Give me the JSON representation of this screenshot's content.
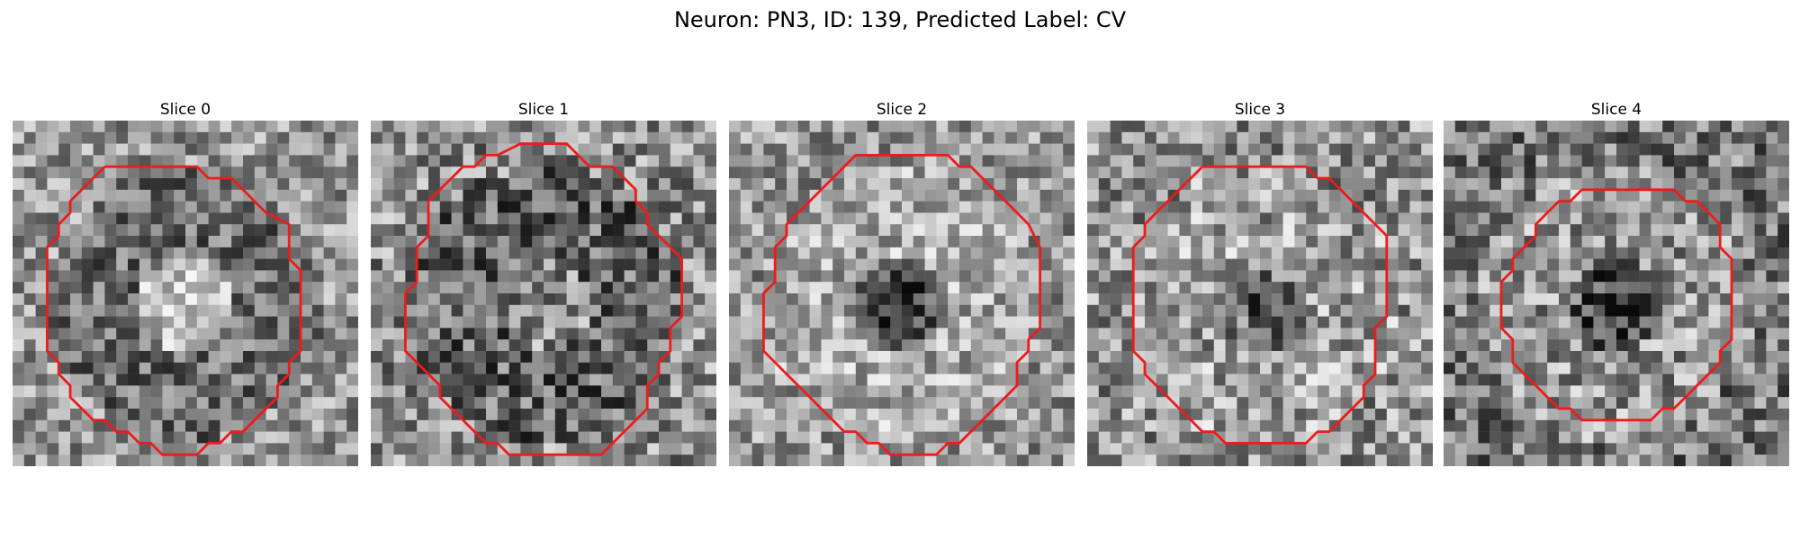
{
  "figure": {
    "title": "Neuron: PN3, ID: 139, Predicted Label: CV"
  },
  "colors": {
    "contour": "#ee1b1b",
    "background": "#ffffff"
  },
  "grid_size": 30,
  "panels": [
    {
      "title": "Slice 0",
      "contour": [
        [
          8,
          4
        ],
        [
          16,
          4
        ],
        [
          17,
          5
        ],
        [
          19,
          5
        ],
        [
          22,
          8
        ],
        [
          24,
          9
        ],
        [
          24,
          12
        ],
        [
          25,
          13
        ],
        [
          25,
          20
        ],
        [
          24,
          21
        ],
        [
          24,
          22
        ],
        [
          23,
          23
        ],
        [
          23,
          24
        ],
        [
          22,
          25
        ],
        [
          21,
          26
        ],
        [
          20,
          27
        ],
        [
          19,
          27
        ],
        [
          18,
          28
        ],
        [
          17,
          28
        ],
        [
          16,
          29
        ],
        [
          13,
          29
        ],
        [
          12,
          28
        ],
        [
          11,
          28
        ],
        [
          10,
          27
        ],
        [
          9,
          27
        ],
        [
          8,
          26
        ],
        [
          7,
          26
        ],
        [
          5,
          24
        ],
        [
          5,
          23
        ],
        [
          4,
          22
        ],
        [
          4,
          21
        ],
        [
          3,
          20
        ],
        [
          3,
          19
        ],
        [
          3,
          18
        ],
        [
          3,
          11
        ],
        [
          4,
          10
        ],
        [
          4,
          9
        ],
        [
          5,
          8
        ],
        [
          5,
          7
        ],
        [
          6,
          6
        ],
        [
          7,
          5
        ],
        [
          8,
          4
        ]
      ]
    },
    {
      "title": "Slice 1",
      "contour": [
        [
          11,
          3
        ],
        [
          13,
          2
        ],
        [
          17,
          2
        ],
        [
          19,
          4
        ],
        [
          21,
          4
        ],
        [
          22,
          5
        ],
        [
          23,
          6
        ],
        [
          23,
          7
        ],
        [
          24,
          8
        ],
        [
          24,
          9
        ],
        [
          25,
          10
        ],
        [
          26,
          11
        ],
        [
          27,
          12
        ],
        [
          27,
          17
        ],
        [
          26,
          18
        ],
        [
          26,
          20
        ],
        [
          25,
          21
        ],
        [
          25,
          22
        ],
        [
          24,
          23
        ],
        [
          24,
          25
        ],
        [
          22,
          27
        ],
        [
          21,
          28
        ],
        [
          20,
          29
        ],
        [
          12,
          29
        ],
        [
          11,
          28
        ],
        [
          10,
          28
        ],
        [
          9,
          27
        ],
        [
          8,
          26
        ],
        [
          7,
          25
        ],
        [
          6,
          24
        ],
        [
          6,
          23
        ],
        [
          5,
          22
        ],
        [
          4,
          21
        ],
        [
          3,
          20
        ],
        [
          3,
          19
        ],
        [
          3,
          15
        ],
        [
          4,
          14
        ],
        [
          4,
          11
        ],
        [
          5,
          10
        ],
        [
          5,
          7
        ],
        [
          6,
          6
        ],
        [
          7,
          5
        ],
        [
          8,
          4
        ],
        [
          9,
          4
        ],
        [
          10,
          3
        ],
        [
          11,
          3
        ]
      ]
    },
    {
      "title": "Slice 2",
      "contour": [
        [
          12,
          3
        ],
        [
          19,
          3
        ],
        [
          20,
          4
        ],
        [
          21,
          4
        ],
        [
          22,
          5
        ],
        [
          23,
          6
        ],
        [
          24,
          7
        ],
        [
          25,
          8
        ],
        [
          26,
          9
        ],
        [
          27,
          11
        ],
        [
          27,
          18
        ],
        [
          26,
          19
        ],
        [
          26,
          20
        ],
        [
          25,
          21
        ],
        [
          25,
          23
        ],
        [
          24,
          24
        ],
        [
          23,
          25
        ],
        [
          22,
          26
        ],
        [
          21,
          27
        ],
        [
          20,
          28
        ],
        [
          19,
          28
        ],
        [
          18,
          29
        ],
        [
          14,
          29
        ],
        [
          13,
          28
        ],
        [
          12,
          28
        ],
        [
          11,
          27
        ],
        [
          10,
          27
        ],
        [
          9,
          26
        ],
        [
          8,
          25
        ],
        [
          7,
          24
        ],
        [
          6,
          23
        ],
        [
          5,
          22
        ],
        [
          4,
          21
        ],
        [
          3,
          20
        ],
        [
          3,
          19
        ],
        [
          3,
          15
        ],
        [
          4,
          14
        ],
        [
          4,
          11
        ],
        [
          5,
          10
        ],
        [
          5,
          9
        ],
        [
          6,
          8
        ],
        [
          7,
          7
        ],
        [
          8,
          6
        ],
        [
          9,
          5
        ],
        [
          10,
          4
        ],
        [
          11,
          3
        ],
        [
          12,
          3
        ]
      ]
    },
    {
      "title": "Slice 3",
      "contour": [
        [
          10,
          4
        ],
        [
          19,
          4
        ],
        [
          20,
          5
        ],
        [
          21,
          5
        ],
        [
          22,
          6
        ],
        [
          23,
          7
        ],
        [
          24,
          8
        ],
        [
          26,
          10
        ],
        [
          26,
          17
        ],
        [
          25,
          18
        ],
        [
          25,
          22
        ],
        [
          24,
          23
        ],
        [
          24,
          24
        ],
        [
          23,
          25
        ],
        [
          22,
          26
        ],
        [
          21,
          27
        ],
        [
          20,
          27
        ],
        [
          19,
          28
        ],
        [
          18,
          28
        ],
        [
          12,
          28
        ],
        [
          11,
          27
        ],
        [
          10,
          27
        ],
        [
          9,
          26
        ],
        [
          8,
          25
        ],
        [
          7,
          24
        ],
        [
          6,
          23
        ],
        [
          5,
          22
        ],
        [
          5,
          21
        ],
        [
          4,
          20
        ],
        [
          4,
          11
        ],
        [
          5,
          10
        ],
        [
          5,
          9
        ],
        [
          6,
          8
        ],
        [
          7,
          7
        ],
        [
          8,
          6
        ],
        [
          9,
          5
        ],
        [
          10,
          4
        ]
      ]
    },
    {
      "title": "Slice 4",
      "contour": [
        [
          12,
          6
        ],
        [
          20,
          6
        ],
        [
          21,
          7
        ],
        [
          22,
          7
        ],
        [
          23,
          8
        ],
        [
          24,
          9
        ],
        [
          24,
          11
        ],
        [
          25,
          12
        ],
        [
          25,
          19
        ],
        [
          24,
          20
        ],
        [
          24,
          21
        ],
        [
          23,
          22
        ],
        [
          22,
          23
        ],
        [
          21,
          24
        ],
        [
          20,
          25
        ],
        [
          19,
          25
        ],
        [
          18,
          26
        ],
        [
          12,
          26
        ],
        [
          11,
          25
        ],
        [
          10,
          25
        ],
        [
          9,
          24
        ],
        [
          8,
          23
        ],
        [
          7,
          22
        ],
        [
          6,
          21
        ],
        [
          6,
          19
        ],
        [
          5,
          18
        ],
        [
          5,
          14
        ],
        [
          6,
          13
        ],
        [
          6,
          12
        ],
        [
          7,
          11
        ],
        [
          8,
          10
        ],
        [
          8,
          9
        ],
        [
          9,
          8
        ],
        [
          10,
          7
        ],
        [
          11,
          7
        ],
        [
          12,
          6
        ]
      ]
    }
  ]
}
